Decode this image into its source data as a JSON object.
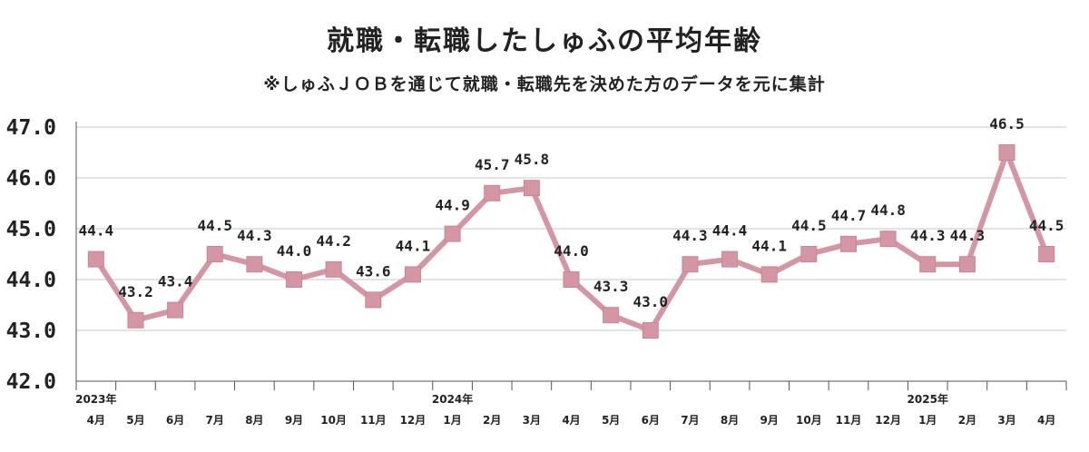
{
  "chart_data": {
    "type": "line",
    "title": "就職・転職したしゅふの平均年齢",
    "subtitle": "※しゅふＪＯＢを通じて就職・転職先を決めた方のデータを元に集計",
    "ylim": [
      42.0,
      47.0
    ],
    "yticks": [
      "42.0",
      "43.0",
      "44.0",
      "45.0",
      "46.0",
      "47.0"
    ],
    "grid": true,
    "series_color": "#d496a5",
    "categories": [
      "4月",
      "5月",
      "6月",
      "7月",
      "8月",
      "9月",
      "10月",
      "11月",
      "12月",
      "1月",
      "2月",
      "3月",
      "4月",
      "5月",
      "6月",
      "7月",
      "8月",
      "9月",
      "10月",
      "11月",
      "12月",
      "1月",
      "2月",
      "3月",
      "4月"
    ],
    "year_labels": [
      {
        "index": 0,
        "text": "2023年"
      },
      {
        "index": 9,
        "text": "2024年"
      },
      {
        "index": 21,
        "text": "2025年"
      }
    ],
    "values": [
      44.4,
      43.2,
      43.4,
      44.5,
      44.3,
      44.0,
      44.2,
      43.6,
      44.1,
      44.9,
      45.7,
      45.8,
      44.0,
      43.3,
      43.0,
      44.3,
      44.4,
      44.1,
      44.5,
      44.7,
      44.8,
      44.3,
      44.3,
      46.5,
      44.5
    ],
    "data_labels": [
      "44.4",
      "43.2",
      "43.4",
      "44.5",
      "44.3",
      "44.0",
      "44.2",
      "43.6",
      "44.1",
      "44.9",
      "45.7",
      "45.8",
      "44.0",
      "43.3",
      "43.0",
      "44.3",
      "44.4",
      "44.1",
      "44.5",
      "44.7",
      "44.8",
      "44.3",
      "44.3",
      "46.5",
      "44.5"
    ]
  }
}
